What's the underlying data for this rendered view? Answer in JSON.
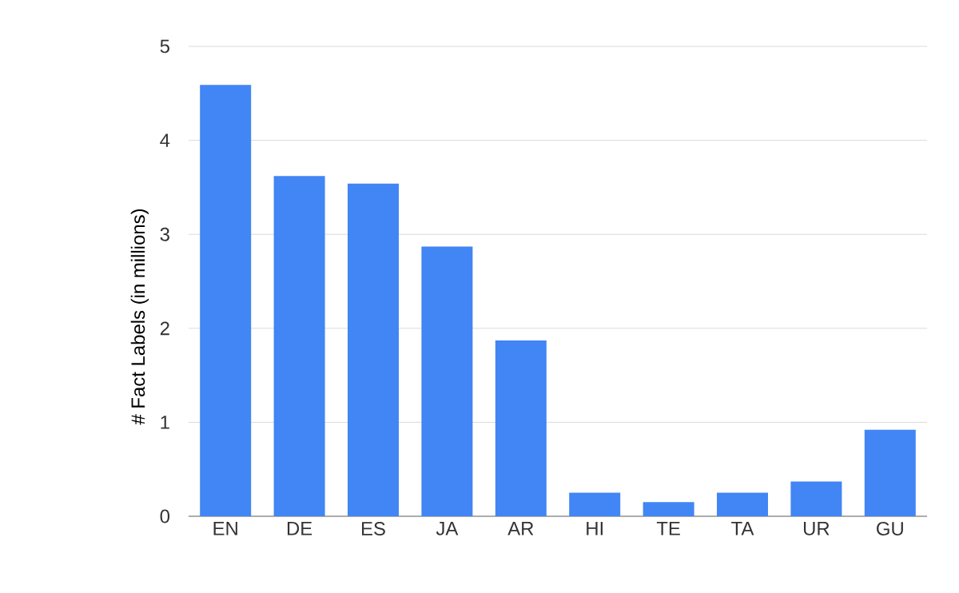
{
  "chart_data": {
    "type": "bar",
    "ylabel": "# Fact Labels (in millions)",
    "categories": [
      "EN",
      "DE",
      "ES",
      "JA",
      "AR",
      "HI",
      "TE",
      "TA",
      "UR",
      "GU"
    ],
    "values": [
      4.59,
      3.62,
      3.54,
      2.87,
      1.87,
      0.25,
      0.15,
      0.25,
      0.37,
      0.92
    ],
    "color": "#4285f4",
    "ylim": [
      0,
      5
    ],
    "yticks": [
      0,
      1,
      2,
      3,
      4,
      5
    ],
    "grid": "y"
  }
}
